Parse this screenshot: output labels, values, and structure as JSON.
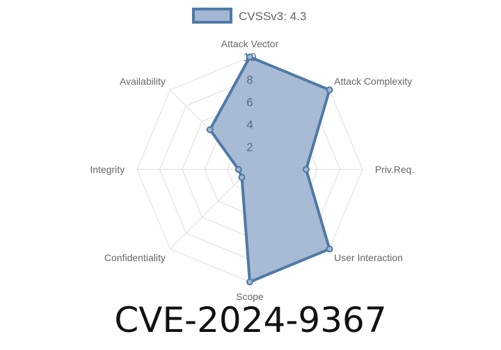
{
  "chart_data": {
    "type": "radar",
    "axes": [
      "Attack Vector",
      "Attack Complexity",
      "Priv.Req.",
      "User Interaction",
      "Scope",
      "Confidentiality",
      "Integrity",
      "Availability"
    ],
    "series": [
      {
        "name": "CVSSv3: 4.3",
        "values": [
          10,
          10,
          5,
          10,
          10,
          1,
          1,
          5
        ]
      }
    ],
    "rlim": [
      0,
      10
    ],
    "ticks": [
      "2",
      "4",
      "6",
      "8",
      "10"
    ],
    "tick_values": [
      2,
      4,
      6,
      8,
      10
    ],
    "legend_position": "top",
    "grid": true,
    "colors": {
      "line": "#4e79a7",
      "fill": "#a3b7d2",
      "grid": "#dddddd"
    }
  },
  "title": "CVE-2024-9367"
}
